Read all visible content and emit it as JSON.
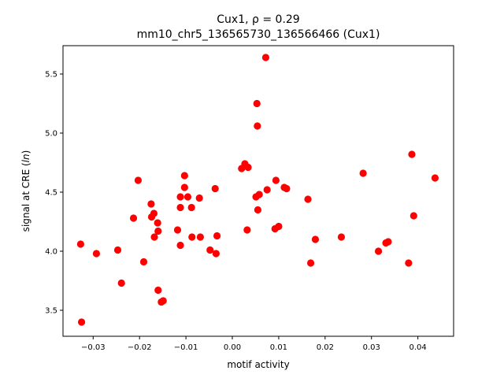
{
  "chart_data": {
    "type": "scatter",
    "title_line1": "Cux1, ρ = 0.29",
    "title_line2": "mm10_chr5_136565730_136566466 (Cux1)",
    "xlabel": "motif activity",
    "ylabel_prefix": "signal at CRE (",
    "ylabel_italic": "ln",
    "ylabel_suffix": ")",
    "xlim": [
      -0.0365,
      0.0477
    ],
    "ylim": [
      3.28,
      5.74
    ],
    "x_ticks": [
      -0.03,
      -0.02,
      -0.01,
      0.0,
      0.01,
      0.02,
      0.03,
      0.04
    ],
    "x_tick_labels": [
      "−0.03",
      "−0.02",
      "−0.01",
      "0.00",
      "0.01",
      "0.02",
      "0.03",
      "0.04"
    ],
    "y_ticks": [
      3.5,
      4.0,
      4.5,
      5.0,
      5.5
    ],
    "y_tick_labels": [
      "3.5",
      "4.0",
      "4.5",
      "5.0",
      "5.5"
    ],
    "grid": false,
    "marker_color": "#ff0000",
    "points": [
      {
        "x": -0.0327,
        "y": 4.06
      },
      {
        "x": -0.0325,
        "y": 3.4
      },
      {
        "x": -0.0293,
        "y": 3.98
      },
      {
        "x": -0.0247,
        "y": 4.01
      },
      {
        "x": -0.0239,
        "y": 3.73
      },
      {
        "x": -0.0213,
        "y": 4.28
      },
      {
        "x": -0.0203,
        "y": 4.6
      },
      {
        "x": -0.0191,
        "y": 3.91
      },
      {
        "x": -0.0175,
        "y": 4.4
      },
      {
        "x": -0.0174,
        "y": 4.29
      },
      {
        "x": -0.0169,
        "y": 4.32
      },
      {
        "x": -0.0168,
        "y": 4.12
      },
      {
        "x": -0.0161,
        "y": 4.24
      },
      {
        "x": -0.016,
        "y": 4.17
      },
      {
        "x": -0.016,
        "y": 3.67
      },
      {
        "x": -0.0153,
        "y": 3.57
      },
      {
        "x": -0.0149,
        "y": 3.58
      },
      {
        "x": -0.0118,
        "y": 4.18
      },
      {
        "x": -0.0112,
        "y": 4.05
      },
      {
        "x": -0.0112,
        "y": 4.37
      },
      {
        "x": -0.0112,
        "y": 4.46
      },
      {
        "x": -0.0103,
        "y": 4.64
      },
      {
        "x": -0.0103,
        "y": 4.54
      },
      {
        "x": -0.0096,
        "y": 4.46
      },
      {
        "x": -0.0088,
        "y": 4.37
      },
      {
        "x": -0.0087,
        "y": 4.12
      },
      {
        "x": -0.0071,
        "y": 4.45
      },
      {
        "x": -0.0069,
        "y": 4.12
      },
      {
        "x": -0.0048,
        "y": 4.01
      },
      {
        "x": -0.0037,
        "y": 4.53
      },
      {
        "x": -0.0035,
        "y": 3.98
      },
      {
        "x": -0.0033,
        "y": 4.13
      },
      {
        "x": 0.002,
        "y": 4.7
      },
      {
        "x": 0.0027,
        "y": 4.74
      },
      {
        "x": 0.0032,
        "y": 4.18
      },
      {
        "x": 0.0034,
        "y": 4.71
      },
      {
        "x": 0.0051,
        "y": 4.46
      },
      {
        "x": 0.0053,
        "y": 5.25
      },
      {
        "x": 0.0054,
        "y": 5.06
      },
      {
        "x": 0.0055,
        "y": 4.35
      },
      {
        "x": 0.0058,
        "y": 4.48
      },
      {
        "x": 0.0072,
        "y": 5.64
      },
      {
        "x": 0.0075,
        "y": 4.52
      },
      {
        "x": 0.0092,
        "y": 4.19
      },
      {
        "x": 0.0094,
        "y": 4.6
      },
      {
        "x": 0.01,
        "y": 4.21
      },
      {
        "x": 0.0112,
        "y": 4.54
      },
      {
        "x": 0.0117,
        "y": 4.53
      },
      {
        "x": 0.0163,
        "y": 4.44
      },
      {
        "x": 0.0169,
        "y": 3.9
      },
      {
        "x": 0.0179,
        "y": 4.1
      },
      {
        "x": 0.0235,
        "y": 4.12
      },
      {
        "x": 0.0282,
        "y": 4.66
      },
      {
        "x": 0.0315,
        "y": 4.0
      },
      {
        "x": 0.0331,
        "y": 4.07
      },
      {
        "x": 0.0336,
        "y": 4.08
      },
      {
        "x": 0.038,
        "y": 3.9
      },
      {
        "x": 0.0387,
        "y": 4.82
      },
      {
        "x": 0.0391,
        "y": 4.3
      },
      {
        "x": 0.0437,
        "y": 4.62
      }
    ]
  }
}
